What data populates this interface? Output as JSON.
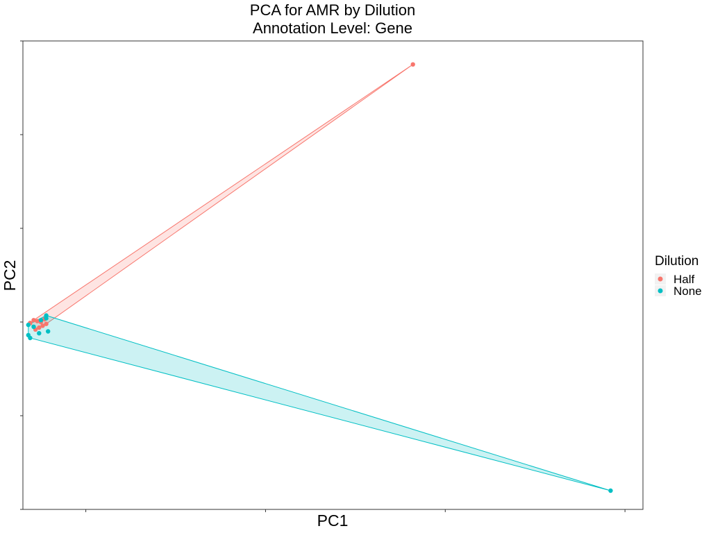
{
  "chart_data": {
    "type": "scatter",
    "title": "PCA for AMR by Dilution",
    "subtitle": "Annotation Level: Gene",
    "xlabel": "PC1",
    "ylabel": "PC2",
    "xlim": [
      -0.35,
      3.1
    ],
    "ylim": [
      -2.0,
      3.0
    ],
    "x_ticks": [
      0,
      1,
      2,
      3
    ],
    "y_ticks": [
      -2,
      -1,
      0,
      1,
      2,
      3
    ],
    "tick_labels_shown": false,
    "grid": false,
    "legend": {
      "title": "Dilution",
      "position": "right",
      "entries": [
        "Half",
        "None"
      ]
    },
    "series": [
      {
        "name": "Half",
        "color": "#F8766D",
        "hull": true,
        "points": [
          {
            "x": 1.82,
            "y": 2.75
          },
          {
            "x": -0.31,
            "y": -0.01
          },
          {
            "x": -0.27,
            "y": 0.01
          },
          {
            "x": -0.25,
            "y": 0.0
          },
          {
            "x": -0.23,
            "y": 0.03
          },
          {
            "x": -0.28,
            "y": -0.08
          },
          {
            "x": -0.24,
            "y": -0.04
          },
          {
            "x": -0.26,
            "y": -0.06
          },
          {
            "x": -0.22,
            "y": -0.02
          },
          {
            "x": -0.29,
            "y": 0.02
          }
        ]
      },
      {
        "name": "None",
        "color": "#00BFC4",
        "hull": true,
        "points": [
          {
            "x": 2.92,
            "y": -1.8
          },
          {
            "x": -0.32,
            "y": -0.03
          },
          {
            "x": -0.32,
            "y": -0.14
          },
          {
            "x": -0.31,
            "y": -0.17
          },
          {
            "x": -0.22,
            "y": 0.07
          },
          {
            "x": -0.22,
            "y": 0.04
          },
          {
            "x": -0.21,
            "y": -0.1
          },
          {
            "x": -0.26,
            "y": -0.12
          },
          {
            "x": -0.25,
            "y": 0.02
          },
          {
            "x": -0.29,
            "y": -0.05
          }
        ]
      }
    ]
  }
}
